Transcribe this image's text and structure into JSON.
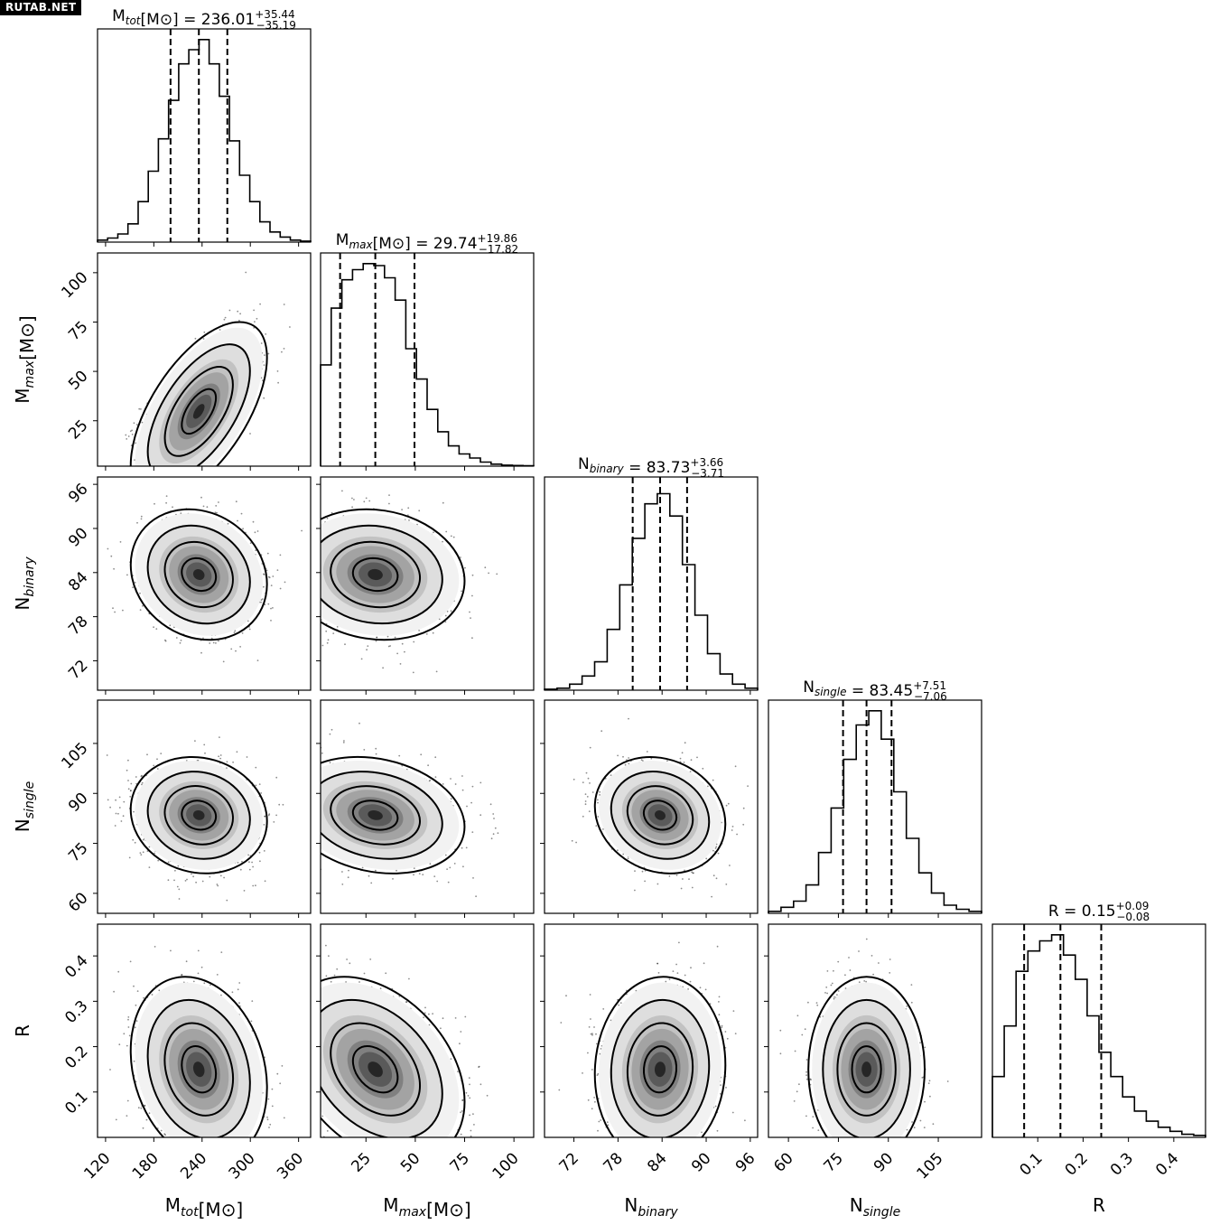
{
  "watermark": "RUTAB.NET",
  "chart_data": {
    "type": "corner",
    "parameters": [
      {
        "key": "mtot",
        "label": "M",
        "sub": "tot",
        "suffix": "[M⊙]",
        "median": "236.01",
        "plus": "+35.44",
        "minus": "−35.19",
        "range": [
          110,
          375
        ],
        "ticks": [
          120,
          180,
          240,
          300,
          360
        ],
        "q16": 200.8,
        "q50": 236.01,
        "q84": 271.4,
        "hist": [
          0.01,
          0.02,
          0.04,
          0.09,
          0.2,
          0.35,
          0.51,
          0.7,
          0.88,
          0.95,
          1.0,
          0.88,
          0.72,
          0.5,
          0.33,
          0.2,
          0.1,
          0.05,
          0.025,
          0.01,
          0.005
        ]
      },
      {
        "key": "mmax",
        "label": "M",
        "sub": "max",
        "suffix": "[M⊙]",
        "median": "29.74",
        "plus": "+19.86",
        "minus": "−17.82",
        "range": [
          2,
          110
        ],
        "ticks": [
          25,
          50,
          75,
          100
        ],
        "q16": 11.9,
        "q50": 29.74,
        "q84": 49.6,
        "hist": [
          0.5,
          0.78,
          0.92,
          0.97,
          1.0,
          0.99,
          0.93,
          0.82,
          0.58,
          0.43,
          0.28,
          0.17,
          0.1,
          0.06,
          0.04,
          0.02,
          0.01,
          0.005,
          0.003,
          0.002
        ]
      },
      {
        "key": "nbinary",
        "label": "N",
        "sub": "binary",
        "suffix": "",
        "median": "83.73",
        "plus": "+3.66",
        "minus": "−3.71",
        "range": [
          68,
          97
        ],
        "ticks": [
          72,
          78,
          84,
          90,
          96
        ],
        "q16": 80.0,
        "q50": 83.73,
        "q84": 87.4,
        "hist": [
          0.005,
          0.01,
          0.03,
          0.07,
          0.14,
          0.3,
          0.52,
          0.75,
          0.92,
          0.97,
          0.86,
          0.62,
          0.37,
          0.18,
          0.08,
          0.03,
          0.01
        ]
      },
      {
        "key": "nsingle",
        "label": "N",
        "sub": "single",
        "suffix": "",
        "median": "83.45",
        "plus": "+7.51",
        "minus": "−7.06",
        "range": [
          54,
          118
        ],
        "ticks": [
          60,
          75,
          90,
          105
        ],
        "q16": 76.4,
        "q50": 83.45,
        "q84": 90.96,
        "hist": [
          0.01,
          0.03,
          0.06,
          0.14,
          0.3,
          0.52,
          0.76,
          0.93,
          1.0,
          0.86,
          0.6,
          0.37,
          0.2,
          0.1,
          0.04,
          0.02,
          0.01
        ]
      },
      {
        "key": "r",
        "label": "R",
        "sub": "",
        "suffix": "",
        "median": "0.15",
        "plus": "+0.09",
        "minus": "−0.08",
        "range": [
          0.0,
          0.47
        ],
        "ticks": [
          0.1,
          0.2,
          0.3,
          0.4
        ],
        "q16": 0.07,
        "q50": 0.15,
        "q84": 0.24,
        "hist": [
          0.3,
          0.55,
          0.82,
          0.92,
          0.97,
          1.0,
          0.9,
          0.78,
          0.6,
          0.42,
          0.3,
          0.2,
          0.13,
          0.08,
          0.05,
          0.03,
          0.015,
          0.01
        ]
      }
    ],
    "joint": {
      "mtot-mmax": {
        "rho": 0.6
      },
      "mtot-nbinary": {
        "rho": -0.15
      },
      "mmax-nbinary": {
        "rho": -0.1
      },
      "mtot-nsingle": {
        "rho": -0.1
      },
      "mmax-nsingle": {
        "rho": -0.2
      },
      "nbinary-nsingle": {
        "rho": -0.15
      },
      "mtot-r": {
        "rho": -0.2
      },
      "mmax-r": {
        "rho": -0.35
      },
      "nbinary-r": {
        "rho": 0.05
      },
      "nsingle-r": {
        "rho": 0.0
      }
    },
    "levels_sigma": [
      0.5,
      1.0,
      1.5,
      2.0
    ],
    "colors": {
      "line": "#000000",
      "fill_max": "#1a1a1a",
      "fill_min": "#ffffff",
      "points": "#000000"
    }
  }
}
